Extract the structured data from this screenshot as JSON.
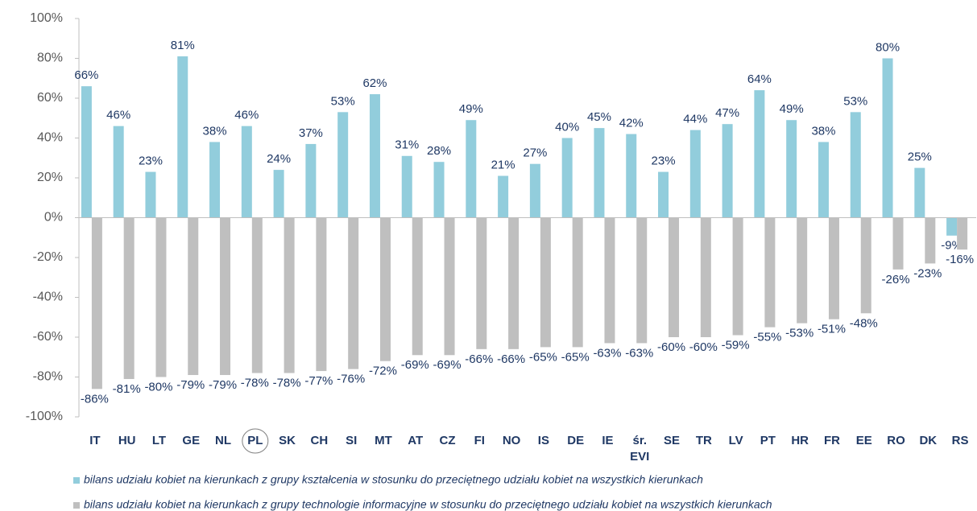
{
  "chart_data": {
    "type": "bar",
    "categories": [
      "IT",
      "HU",
      "LT",
      "GE",
      "NL",
      "PL",
      "SK",
      "CH",
      "SI",
      "MT",
      "AT",
      "CZ",
      "FI",
      "NO",
      "IS",
      "DE",
      "IE",
      "śr. EVI",
      "SE",
      "TR",
      "LV",
      "PT",
      "HR",
      "FR",
      "EE",
      "RO",
      "DK",
      "RS"
    ],
    "series": [
      {
        "name": "bilans udziału kobiet na kierunkach z grupy kształcenia w stosunku do przeciętnego udziału kobiet na wszystkich kierunkach",
        "color": "#92cddc",
        "values": [
          66,
          46,
          23,
          81,
          38,
          46,
          24,
          37,
          53,
          62,
          31,
          28,
          49,
          21,
          27,
          40,
          45,
          42,
          23,
          44,
          47,
          64,
          49,
          38,
          53,
          80,
          25,
          -9
        ],
        "value_labels": [
          "66%",
          "46%",
          "23%",
          "81%",
          "38%",
          "46%",
          "24%",
          "37%",
          "53%",
          "62%",
          "31%",
          "28%",
          "49%",
          "21%",
          "27%",
          "40%",
          "45%",
          "42%",
          "23%",
          "44%",
          "47%",
          "64%",
          "49%",
          "38%",
          "53%",
          "80%",
          "25%",
          "-9%"
        ]
      },
      {
        "name": "bilans udziału kobiet na kierunkach z grupy technologie informacyjne w stosunku do przeciętnego udziału kobiet na wszystkich kierunkach",
        "color": "#bfbfbf",
        "values": [
          -86,
          -81,
          -80,
          -79,
          -79,
          -78,
          -78,
          -77,
          -76,
          -72,
          -69,
          -69,
          -66,
          -66,
          -65,
          -65,
          -63,
          -63,
          -60,
          -60,
          -59,
          -55,
          -53,
          -51,
          -48,
          -26,
          -23,
          -16
        ],
        "value_labels": [
          "-86%",
          "-81%",
          "-80%",
          "-79%",
          "-79%",
          "-78%",
          "-78%",
          "-77%",
          "-76%",
          "-72%",
          "-69%",
          "-69%",
          "-66%",
          "-66%",
          "-65%",
          "-65%",
          "-63%",
          "-63%",
          "-60%",
          "-60%",
          "-59%",
          "-55%",
          "-53%",
          "-51%",
          "-48%",
          "-26%",
          "-23%",
          "-16%"
        ]
      }
    ],
    "ylim": [
      -100,
      100
    ],
    "yticks": [
      {
        "value": -100,
        "label": "-100%"
      },
      {
        "value": -80,
        "label": "-80%"
      },
      {
        "value": -60,
        "label": "-60%"
      },
      {
        "value": -40,
        "label": "-40%"
      },
      {
        "value": -20,
        "label": "-20%"
      },
      {
        "value": 0,
        "label": "0%"
      },
      {
        "value": 20,
        "label": "20%"
      },
      {
        "value": 40,
        "label": "40%"
      },
      {
        "value": 60,
        "label": "60%"
      },
      {
        "value": 80,
        "label": "80%"
      },
      {
        "value": 100,
        "label": "100%"
      }
    ],
    "grid": false
  }
}
